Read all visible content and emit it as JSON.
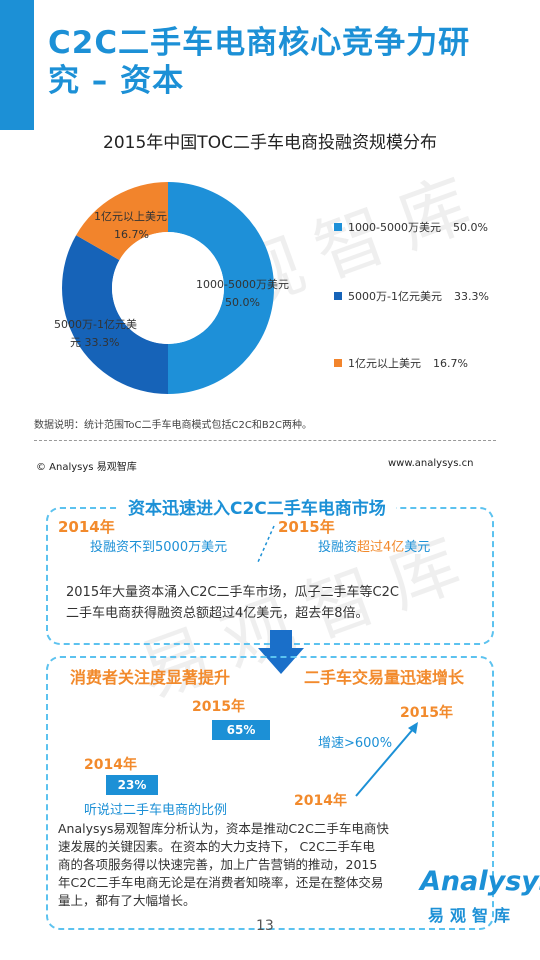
{
  "header": {
    "title_line1": "C2C二手车电商核心竞争力研",
    "title_line2": "究 – 资本",
    "accent_color": "#1c90d6"
  },
  "chart_data": {
    "type": "pie",
    "title": "2015年中国TOC二手车电商投融资规模分布",
    "hole": true,
    "categories": [
      "1000-5000万美元",
      "5000万-1亿元美元",
      "1亿元以上美元"
    ],
    "values": [
      50.0,
      33.3,
      16.7
    ],
    "value_labels": [
      "50.0%",
      "33.3%",
      "16.7%"
    ],
    "colors": [
      "#1e90d8",
      "#1663b8",
      "#f2842c"
    ],
    "slice_label_texts": [
      "1000-5000万美元",
      "5000万-1亿元美",
      "元",
      "1亿元以上美元"
    ],
    "legend_labels": [
      "1000-5000万美元",
      "5000万-1亿元美元",
      "1亿元以上美元"
    ],
    "legend_position": "right"
  },
  "note": "数据说明：统计范围ToC二手车电商模式包括C2C和B2C两种。",
  "footer": {
    "copyright": "© Analysys 易观智库",
    "website": "www.analysys.cn"
  },
  "section1": {
    "heading": "资本迅速进入C2C二手车电商市场",
    "year_left": "2014年",
    "year_right": "2015年",
    "left_text": "投融资不到5000万美元",
    "right_text_a": "投融资",
    "right_text_b": "超过4亿",
    "right_text_c": "美元",
    "paragraph_line1": "2015年大量资本涌入C2C二手车市场，瓜子二手车等C2C",
    "paragraph_line2": "二手车电商获得融资总额超过4亿美元，超去年8倍。"
  },
  "section2": {
    "heading_left": "消费者关注度显著提升",
    "heading_right": "二手车交易量迅速增长",
    "year_2015_a": "2015年",
    "value_2015": "65%",
    "year_2014_a": "2014年",
    "value_2014": "23%",
    "awareness_caption": "听说过二手车电商的比例",
    "growth_label": "增速>600%",
    "year_2015_b": "2015年",
    "year_2014_b": "2014年",
    "awareness": [
      {
        "year": "2014年",
        "value": 23
      },
      {
        "year": "2015年",
        "value": 65
      }
    ],
    "paragraph_lines": [
      "Analysys易观智库分析认为，资本是推动C2C二手车电商快",
      "速发展的关键因素。在资本的大力支持下， C2C二手车电",
      "商的各项服务得以快速完善，加上广告营销的推动，2015",
      "年C2C二手车电商无论是在消费者知晓率，还是在整体交易",
      "量上，都有了大幅增长。"
    ]
  },
  "watermark": "易观智库",
  "logo": {
    "latin": "Analysys",
    "cn": "易观智库"
  },
  "page_number": "13"
}
